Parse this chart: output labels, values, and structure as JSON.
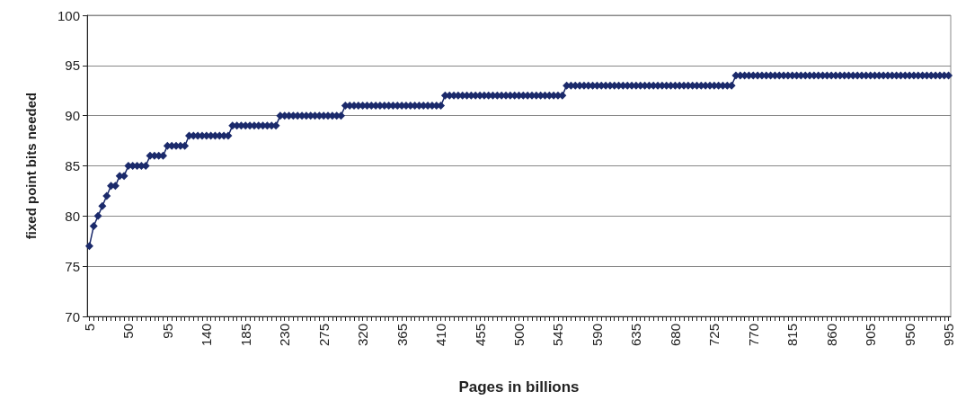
{
  "chart_data": {
    "type": "line",
    "xlabel": "Pages in billions",
    "ylabel": "fixed point bits needed",
    "categories": [
      "5",
      null,
      null,
      null,
      null,
      null,
      null,
      null,
      null,
      "50",
      null,
      null,
      null,
      null,
      null,
      null,
      null,
      null,
      "95",
      null,
      null,
      null,
      null,
      null,
      null,
      null,
      null,
      "140",
      null,
      null,
      null,
      null,
      null,
      null,
      null,
      null,
      "185",
      null,
      null,
      null,
      null,
      null,
      null,
      null,
      null,
      "230",
      null,
      null,
      null,
      null,
      null,
      null,
      null,
      null,
      "275",
      null,
      null,
      null,
      null,
      null,
      null,
      null,
      null,
      "320",
      null,
      null,
      null,
      null,
      null,
      null,
      null,
      null,
      "365",
      null,
      null,
      null,
      null,
      null,
      null,
      null,
      null,
      "410",
      null,
      null,
      null,
      null,
      null,
      null,
      null,
      null,
      "455",
      null,
      null,
      null,
      null,
      null,
      null,
      null,
      null,
      "500",
      null,
      null,
      null,
      null,
      null,
      null,
      null,
      null,
      "545",
      null,
      null,
      null,
      null,
      null,
      null,
      null,
      null,
      "590",
      null,
      null,
      null,
      null,
      null,
      null,
      null,
      null,
      "635",
      null,
      null,
      null,
      null,
      null,
      null,
      null,
      null,
      "680",
      null,
      null,
      null,
      null,
      null,
      null,
      null,
      null,
      "725",
      null,
      null,
      null,
      null,
      null,
      null,
      null,
      null,
      "770",
      null,
      null,
      null,
      null,
      null,
      null,
      null,
      null,
      "815",
      null,
      null,
      null,
      null,
      null,
      null,
      null,
      null,
      "860",
      null,
      null,
      null,
      null,
      null,
      null,
      null,
      null,
      "905",
      null,
      null,
      null,
      null,
      null,
      null,
      null,
      null,
      "950",
      null,
      null,
      null,
      null,
      null,
      null,
      null,
      null,
      "995"
    ],
    "series": [
      {
        "color": "#1b2a6b",
        "values": [
          77,
          79,
          80,
          81,
          82,
          83,
          83,
          84,
          84,
          85,
          85,
          85,
          85,
          85,
          86,
          86,
          86,
          86,
          87,
          87,
          87,
          87,
          87,
          88,
          88,
          88,
          88,
          88,
          88,
          88,
          88,
          88,
          88,
          89,
          89,
          89,
          89,
          89,
          89,
          89,
          89,
          89,
          89,
          89,
          90,
          90,
          90,
          90,
          90,
          90,
          90,
          90,
          90,
          90,
          90,
          90,
          90,
          90,
          90,
          91,
          91,
          91,
          91,
          91,
          91,
          91,
          91,
          91,
          91,
          91,
          91,
          91,
          91,
          91,
          91,
          91,
          91,
          91,
          91,
          91,
          91,
          91,
          92,
          92,
          92,
          92,
          92,
          92,
          92,
          92,
          92,
          92,
          92,
          92,
          92,
          92,
          92,
          92,
          92,
          92,
          92,
          92,
          92,
          92,
          92,
          92,
          92,
          92,
          92,
          92,
          93,
          93,
          93,
          93,
          93,
          93,
          93,
          93,
          93,
          93,
          93,
          93,
          93,
          93,
          93,
          93,
          93,
          93,
          93,
          93,
          93,
          93,
          93,
          93,
          93,
          93,
          93,
          93,
          93,
          93,
          93,
          93,
          93,
          93,
          93,
          93,
          93,
          93,
          93,
          94,
          94,
          94,
          94,
          94,
          94,
          94,
          94,
          94,
          94,
          94,
          94,
          94,
          94,
          94,
          94,
          94,
          94,
          94,
          94,
          94,
          94,
          94,
          94,
          94,
          94,
          94,
          94,
          94,
          94,
          94,
          94,
          94,
          94,
          94,
          94,
          94,
          94,
          94,
          94,
          94,
          94,
          94,
          94,
          94,
          94,
          94,
          94,
          94,
          94
        ]
      }
    ],
    "ylim": [
      70,
      100
    ],
    "yticks": [
      70,
      75,
      80,
      85,
      90,
      95,
      100
    ],
    "grid": "y",
    "marker": "diamond",
    "line_style": "solid"
  }
}
